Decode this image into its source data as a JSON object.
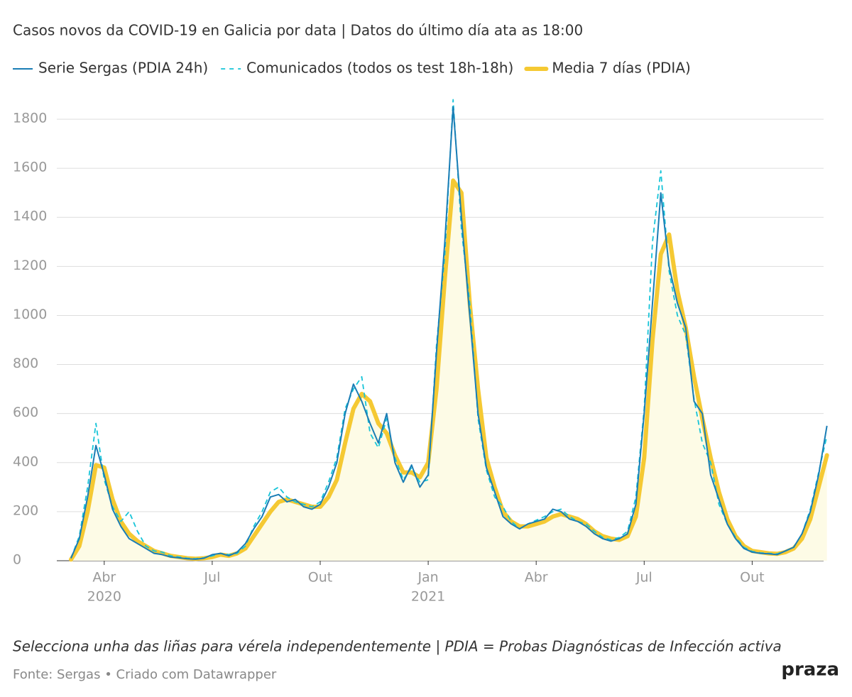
{
  "chart_data": {
    "type": "line",
    "title": "Casos novos da COVID-19 en Galicia por data | Datos do último día ata as 18:00",
    "note": "Selecciona unha das liñas para vérela independentemente | PDIA = Probas Diagnósticas de Infección activa",
    "source": "Fonte: Sergas • Criado com Datawrapper",
    "logo": "praza",
    "categories": [
      null,
      null,
      null,
      null,
      "Abr",
      null,
      null,
      null,
      null,
      null,
      null,
      null,
      null,
      null,
      null,
      null,
      null,
      "Jul",
      null,
      null,
      null,
      null,
      null,
      null,
      null,
      null,
      null,
      null,
      null,
      null,
      "Out",
      null,
      null,
      null,
      null,
      null,
      null,
      null,
      null,
      null,
      null,
      null,
      null,
      "Jan",
      null,
      null,
      null,
      null,
      null,
      null,
      null,
      null,
      null,
      null,
      null,
      null,
      "Abr",
      null,
      null,
      null,
      null,
      null,
      null,
      null,
      null,
      null,
      null,
      null,
      null,
      "Jul",
      null,
      null,
      null,
      null,
      null,
      null,
      null,
      null,
      null,
      null,
      null,
      null,
      "Out",
      null,
      null,
      null,
      null,
      null,
      null,
      null,
      null,
      null
    ],
    "category_years": [
      null,
      null,
      null,
      null,
      "2020",
      null,
      null,
      null,
      null,
      null,
      null,
      null,
      null,
      null,
      null,
      null,
      null,
      null,
      null,
      null,
      null,
      null,
      null,
      null,
      null,
      null,
      null,
      null,
      null,
      null,
      null,
      null,
      null,
      null,
      null,
      null,
      null,
      null,
      null,
      null,
      null,
      null,
      null,
      "2021",
      null,
      null,
      null,
      null,
      null,
      null,
      null,
      null,
      null,
      null,
      null,
      null,
      null,
      null,
      null,
      null,
      null,
      null,
      null,
      null,
      null,
      null,
      null,
      null,
      null,
      null,
      null,
      null,
      null,
      null,
      null,
      null,
      null,
      null,
      null,
      null,
      null,
      null,
      null,
      null,
      null,
      null,
      null,
      null,
      null,
      null,
      null,
      null
    ],
    "series": [
      {
        "name": "Serie Sergas (PDIA 24h)",
        "color": "#1a7db5",
        "style": "solid",
        "values": [
          10,
          90,
          260,
          470,
          350,
          210,
          140,
          90,
          70,
          50,
          30,
          25,
          15,
          12,
          8,
          6,
          10,
          25,
          30,
          20,
          35,
          70,
          130,
          180,
          260,
          270,
          240,
          250,
          220,
          210,
          230,
          300,
          400,
          600,
          720,
          650,
          560,
          480,
          600,
          400,
          320,
          390,
          300,
          350,
          850,
          1300,
          1850,
          1400,
          1000,
          600,
          380,
          280,
          180,
          150,
          130,
          150,
          160,
          170,
          210,
          200,
          170,
          160,
          140,
          110,
          90,
          80,
          90,
          110,
          230,
          600,
          1050,
          1500,
          1200,
          1050,
          950,
          650,
          600,
          350,
          250,
          150,
          90,
          50,
          35,
          30,
          28,
          25,
          40,
          55,
          110,
          200,
          350,
          550
        ]
      },
      {
        "name": "Comunicados (todos os test 18h-18h)",
        "color": "#16c4d8",
        "style": "dashed",
        "values": [
          10,
          100,
          300,
          560,
          330,
          220,
          160,
          200,
          120,
          60,
          40,
          35,
          20,
          15,
          10,
          8,
          12,
          20,
          30,
          25,
          30,
          60,
          140,
          200,
          280,
          300,
          260,
          240,
          230,
          220,
          240,
          320,
          420,
          620,
          700,
          750,
          520,
          460,
          580,
          420,
          330,
          380,
          320,
          330,
          880,
          1250,
          1880,
          1350,
          1050,
          580,
          370,
          260,
          220,
          160,
          130,
          150,
          165,
          180,
          200,
          210,
          180,
          160,
          150,
          120,
          95,
          85,
          95,
          120,
          260,
          620,
          1300,
          1590,
          1180,
          1000,
          920,
          660,
          480,
          400,
          230,
          150,
          95,
          55,
          38,
          32,
          30,
          28,
          40,
          55,
          110,
          210,
          360,
          510
        ]
      },
      {
        "name": "Media 7 días (PDIA)",
        "color": "#f5c933",
        "style": "thick",
        "area": "#fdfbe6",
        "values": [
          5,
          60,
          200,
          390,
          380,
          250,
          160,
          110,
          80,
          60,
          40,
          30,
          20,
          15,
          10,
          8,
          10,
          15,
          25,
          20,
          30,
          50,
          100,
          150,
          200,
          240,
          250,
          240,
          230,
          220,
          220,
          260,
          330,
          480,
          620,
          680,
          650,
          560,
          520,
          430,
          360,
          360,
          340,
          400,
          700,
          1150,
          1550,
          1500,
          1050,
          700,
          420,
          300,
          200,
          160,
          140,
          140,
          150,
          160,
          180,
          190,
          180,
          170,
          150,
          120,
          100,
          90,
          85,
          100,
          180,
          420,
          900,
          1250,
          1330,
          1100,
          950,
          750,
          580,
          420,
          280,
          170,
          100,
          60,
          40,
          35,
          30,
          28,
          35,
          50,
          90,
          170,
          300,
          430
        ]
      }
    ],
    "ylim": [
      0,
      1800
    ],
    "yticks": [
      0,
      200,
      400,
      600,
      800,
      1000,
      1200,
      1400,
      1600,
      1800
    ],
    "grid": true
  }
}
